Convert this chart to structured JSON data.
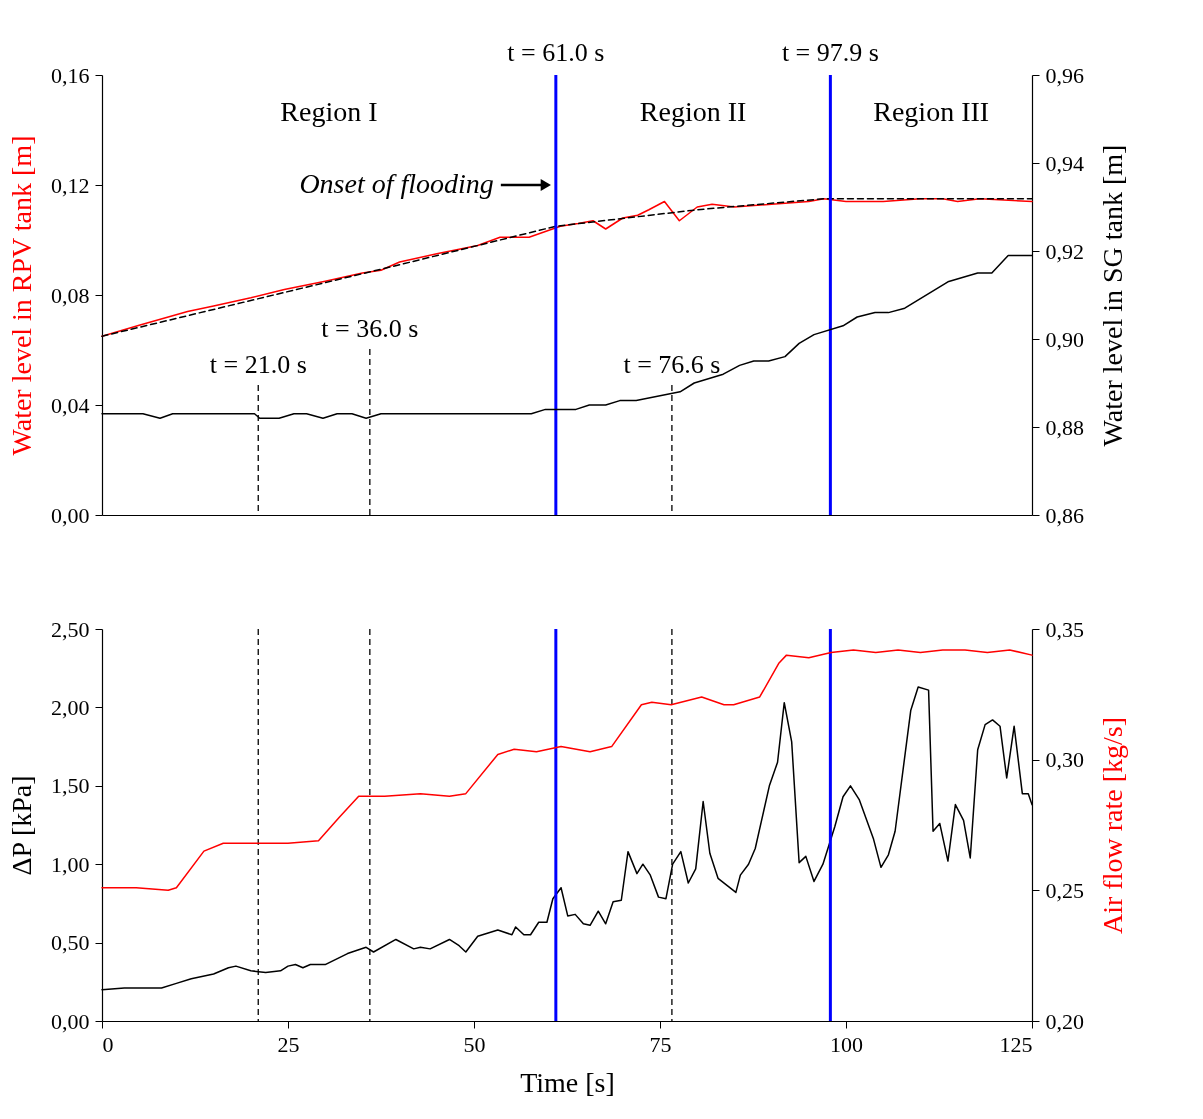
{
  "chart_data": [
    {
      "type": "line",
      "ylabel": "Water level in RPV tank [m]",
      "y2label": "Water level in SG tank [m]",
      "xlim": [
        0,
        125
      ],
      "xticks": [
        0,
        25,
        50,
        75,
        100,
        125
      ],
      "tick_labels": "y",
      "ylim": [
        0,
        0.16
      ],
      "yticks": [
        {
          "value": 0,
          "label": "0,00"
        },
        {
          "value": 0.04,
          "label": "0,04"
        },
        {
          "value": 0.08,
          "label": "0,08"
        },
        {
          "value": 0.12,
          "label": "0,12"
        },
        {
          "value": 0.16,
          "label": "0,16"
        }
      ],
      "y2lim": [
        0.86,
        0.96
      ],
      "y2ticks": [
        {
          "value": 0.86,
          "label": "0,86"
        },
        {
          "value": 0.88,
          "label": "0,88"
        },
        {
          "value": 0.9,
          "label": "0,90"
        },
        {
          "value": 0.92,
          "label": "0,92"
        },
        {
          "value": 0.94,
          "label": "0,94"
        },
        {
          "value": 0.96,
          "label": "0,96"
        }
      ],
      "series": [
        {
          "color": "#ff0000",
          "x": [
            0,
            5,
            11.5,
            15,
            20,
            24.5,
            30,
            35,
            37.5,
            40,
            45,
            50.5,
            53.5,
            57.4,
            61.6,
            64,
            66,
            67.7,
            70,
            72,
            73.5,
            75.6,
            77.6,
            80,
            82,
            85,
            90,
            95,
            97,
            100,
            105,
            110,
            113,
            115,
            118,
            125
          ],
          "values": [
            0.065,
            0.069,
            0.074,
            0.076,
            0.079,
            0.082,
            0.085,
            0.088,
            0.089,
            0.092,
            0.095,
            0.098,
            0.101,
            0.101,
            0.105,
            0.106,
            0.107,
            0.104,
            0.108,
            0.109,
            0.111,
            0.114,
            0.107,
            0.112,
            0.113,
            0.112,
            0.113,
            0.114,
            0.115,
            0.114,
            0.114,
            0.115,
            0.115,
            0.114,
            0.115,
            0.114
          ]
        },
        {
          "color": "#000000",
          "line_style": "dashed",
          "x": [
            0,
            20,
            40,
            61,
            80,
            97,
            125
          ],
          "values": [
            0.065,
            0.078,
            0.091,
            0.105,
            0.111,
            0.115,
            0.115
          ]
        },
        {
          "color": "#000000",
          "axis": "y2",
          "x": [
            0,
            5.5,
            7.8,
            9.5,
            20.5,
            21.2,
            23.8,
            25.8,
            27.5,
            29.7,
            31.6,
            33.6,
            35.5,
            37.5,
            57.7,
            59.6,
            63.7,
            65.5,
            67.7,
            69.6,
            71.8,
            77.7,
            79.6,
            83.5,
            85.7,
            87.6,
            89.6,
            91.8,
            93.7,
            95.7,
            99.6,
            101.5,
            103.9,
            105.7,
            107.9,
            113.7,
            117.7,
            119.6,
            121.8,
            125
          ],
          "values": [
            0.883,
            0.883,
            0.882,
            0.883,
            0.883,
            0.882,
            0.882,
            0.883,
            0.883,
            0.882,
            0.883,
            0.883,
            0.882,
            0.883,
            0.883,
            0.884,
            0.884,
            0.885,
            0.885,
            0.886,
            0.886,
            0.888,
            0.89,
            0.892,
            0.894,
            0.895,
            0.895,
            0.896,
            0.899,
            0.901,
            0.903,
            0.905,
            0.906,
            0.906,
            0.907,
            0.913,
            0.915,
            0.915,
            0.919,
            0.919
          ]
        }
      ],
      "ref_lines": [
        {
          "axis": "x",
          "value": 21.0,
          "label": "t = 21.0 s",
          "color": "#000000",
          "line_style": "dashed"
        },
        {
          "axis": "x",
          "value": 36.0,
          "label": "t = 36.0 s",
          "color": "#000000",
          "line_style": "dashed"
        },
        {
          "axis": "x",
          "value": 61.0,
          "label": "t = 61.0 s",
          "color": "#0000ff",
          "line_style": "solid"
        },
        {
          "axis": "x",
          "value": 76.6,
          "label": "t = 76.6 s",
          "color": "#000000",
          "line_style": "dashed"
        },
        {
          "axis": "x",
          "value": 97.9,
          "label": "t = 97.9 s",
          "color": "#0000ff",
          "line_style": "solid"
        }
      ],
      "annotations": [
        "Region I",
        "Region II",
        "Region III",
        {
          "text": "Onset of flooding",
          "x": 61.0,
          "y": 0.12
        }
      ]
    },
    {
      "type": "line",
      "xlabel": "Time [s]",
      "ylabel": "ΔP [kPa]",
      "y2label": "Air flow rate [kg/s]",
      "xlim": [
        0,
        125
      ],
      "xticks": [
        0,
        25,
        50,
        75,
        100,
        125
      ],
      "ylim": [
        0,
        2.5
      ],
      "yticks": [
        {
          "value": 0,
          "label": "0,00"
        },
        {
          "value": 0.5,
          "label": "0,50"
        },
        {
          "value": 1,
          "label": "1,00"
        },
        {
          "value": 1.5,
          "label": "1,50"
        },
        {
          "value": 2,
          "label": "2,00"
        },
        {
          "value": 2.5,
          "label": "2,50"
        }
      ],
      "y2lim": [
        0.2,
        0.35
      ],
      "y2ticks": [
        {
          "value": 0.2,
          "label": "0,20"
        },
        {
          "value": 0.25,
          "label": "0,25"
        },
        {
          "value": 0.3,
          "label": "0,30"
        },
        {
          "value": 0.35,
          "label": "0,35"
        }
      ],
      "series": [
        {
          "color": "#000000",
          "x": [
            0,
            3,
            5,
            8,
            10,
            12,
            15,
            17,
            18,
            20,
            22,
            24,
            25,
            26,
            27,
            28,
            30,
            33,
            35.5,
            36.5,
            39.5,
            41.9,
            42.8,
            44.1,
            46.7,
            48,
            48.9,
            50.5,
            53.2,
            55.1,
            55.6,
            56.7,
            57.6,
            58.7,
            59.8,
            60.6,
            61.7,
            62.6,
            63.6,
            64.7,
            65.6,
            66.7,
            67.7,
            68.7,
            69.8,
            70.7,
            71.9,
            72.7,
            73.7,
            74.8,
            75.8,
            76.7,
            77.8,
            78.8,
            79.8,
            80.8,
            81.7,
            82.8,
            85.2,
            85.8,
            86.9,
            87.8,
            89.7,
            90.8,
            91.7,
            92.7,
            93.7,
            94.6,
            95.7,
            96.9,
            98.5,
            99.6,
            100.6,
            101.8,
            103.7,
            104.7,
            105.7,
            106.6,
            108.7,
            109.7,
            111.1,
            111.7,
            112.6,
            113.7,
            114.7,
            115.8,
            116.7,
            117.7,
            118.7,
            119.7,
            120.7,
            121.6,
            122.6,
            123.7,
            124.5,
            125
          ],
          "values": [
            0.2,
            0.21,
            0.21,
            0.21,
            0.24,
            0.27,
            0.3,
            0.34,
            0.35,
            0.32,
            0.31,
            0.32,
            0.35,
            0.36,
            0.34,
            0.36,
            0.36,
            0.43,
            0.47,
            0.44,
            0.52,
            0.46,
            0.47,
            0.46,
            0.52,
            0.48,
            0.44,
            0.54,
            0.58,
            0.55,
            0.6,
            0.55,
            0.55,
            0.63,
            0.63,
            0.78,
            0.85,
            0.67,
            0.68,
            0.62,
            0.61,
            0.7,
            0.62,
            0.76,
            0.77,
            1.08,
            0.94,
            1.0,
            0.93,
            0.79,
            0.78,
            1.0,
            1.08,
            0.88,
            0.97,
            1.4,
            1.07,
            0.91,
            0.82,
            0.93,
            1.0,
            1.1,
            1.5,
            1.65,
            2.03,
            1.78,
            1.01,
            1.05,
            0.89,
            1.0,
            1.24,
            1.43,
            1.5,
            1.41,
            1.16,
            0.98,
            1.06,
            1.21,
            1.98,
            2.13,
            2.11,
            1.21,
            1.26,
            1.02,
            1.38,
            1.28,
            1.04,
            1.73,
            1.89,
            1.92,
            1.88,
            1.55,
            1.88,
            1.45,
            1.45,
            1.38
          ]
        },
        {
          "color": "#ff0000",
          "axis": "y2",
          "x": [
            0,
            4.6,
            8.9,
            10,
            13.7,
            16.3,
            21.7,
            25,
            29.1,
            31.9,
            34.5,
            38,
            42.8,
            46.7,
            48.9,
            53.2,
            55.4,
            58.4,
            61.7,
            65.6,
            68.5,
            72.5,
            73.9,
            76.5,
            80.6,
            83.6,
            84.9,
            88.4,
            91,
            92,
            95,
            98,
            101,
            104,
            107,
            110,
            113,
            116,
            119,
            122,
            125
          ],
          "values": [
            0.251,
            0.251,
            0.25,
            0.251,
            0.265,
            0.268,
            0.268,
            0.268,
            0.269,
            0.278,
            0.286,
            0.286,
            0.287,
            0.286,
            0.287,
            0.302,
            0.304,
            0.303,
            0.305,
            0.303,
            0.305,
            0.321,
            0.322,
            0.321,
            0.324,
            0.321,
            0.321,
            0.324,
            0.337,
            0.34,
            0.339,
            0.341,
            0.342,
            0.341,
            0.342,
            0.341,
            0.342,
            0.342,
            0.341,
            0.342,
            0.34
          ]
        }
      ],
      "ref_lines": [
        {
          "axis": "x",
          "value": 21.0,
          "color": "#000000",
          "line_style": "dashed"
        },
        {
          "axis": "x",
          "value": 36.0,
          "color": "#000000",
          "line_style": "dashed"
        },
        {
          "axis": "x",
          "value": 61.0,
          "color": "#0000ff",
          "line_style": "solid"
        },
        {
          "axis": "x",
          "value": 76.6,
          "color": "#000000",
          "line_style": "dashed"
        },
        {
          "axis": "x",
          "value": 97.9,
          "color": "#0000ff",
          "line_style": "solid"
        }
      ]
    }
  ]
}
